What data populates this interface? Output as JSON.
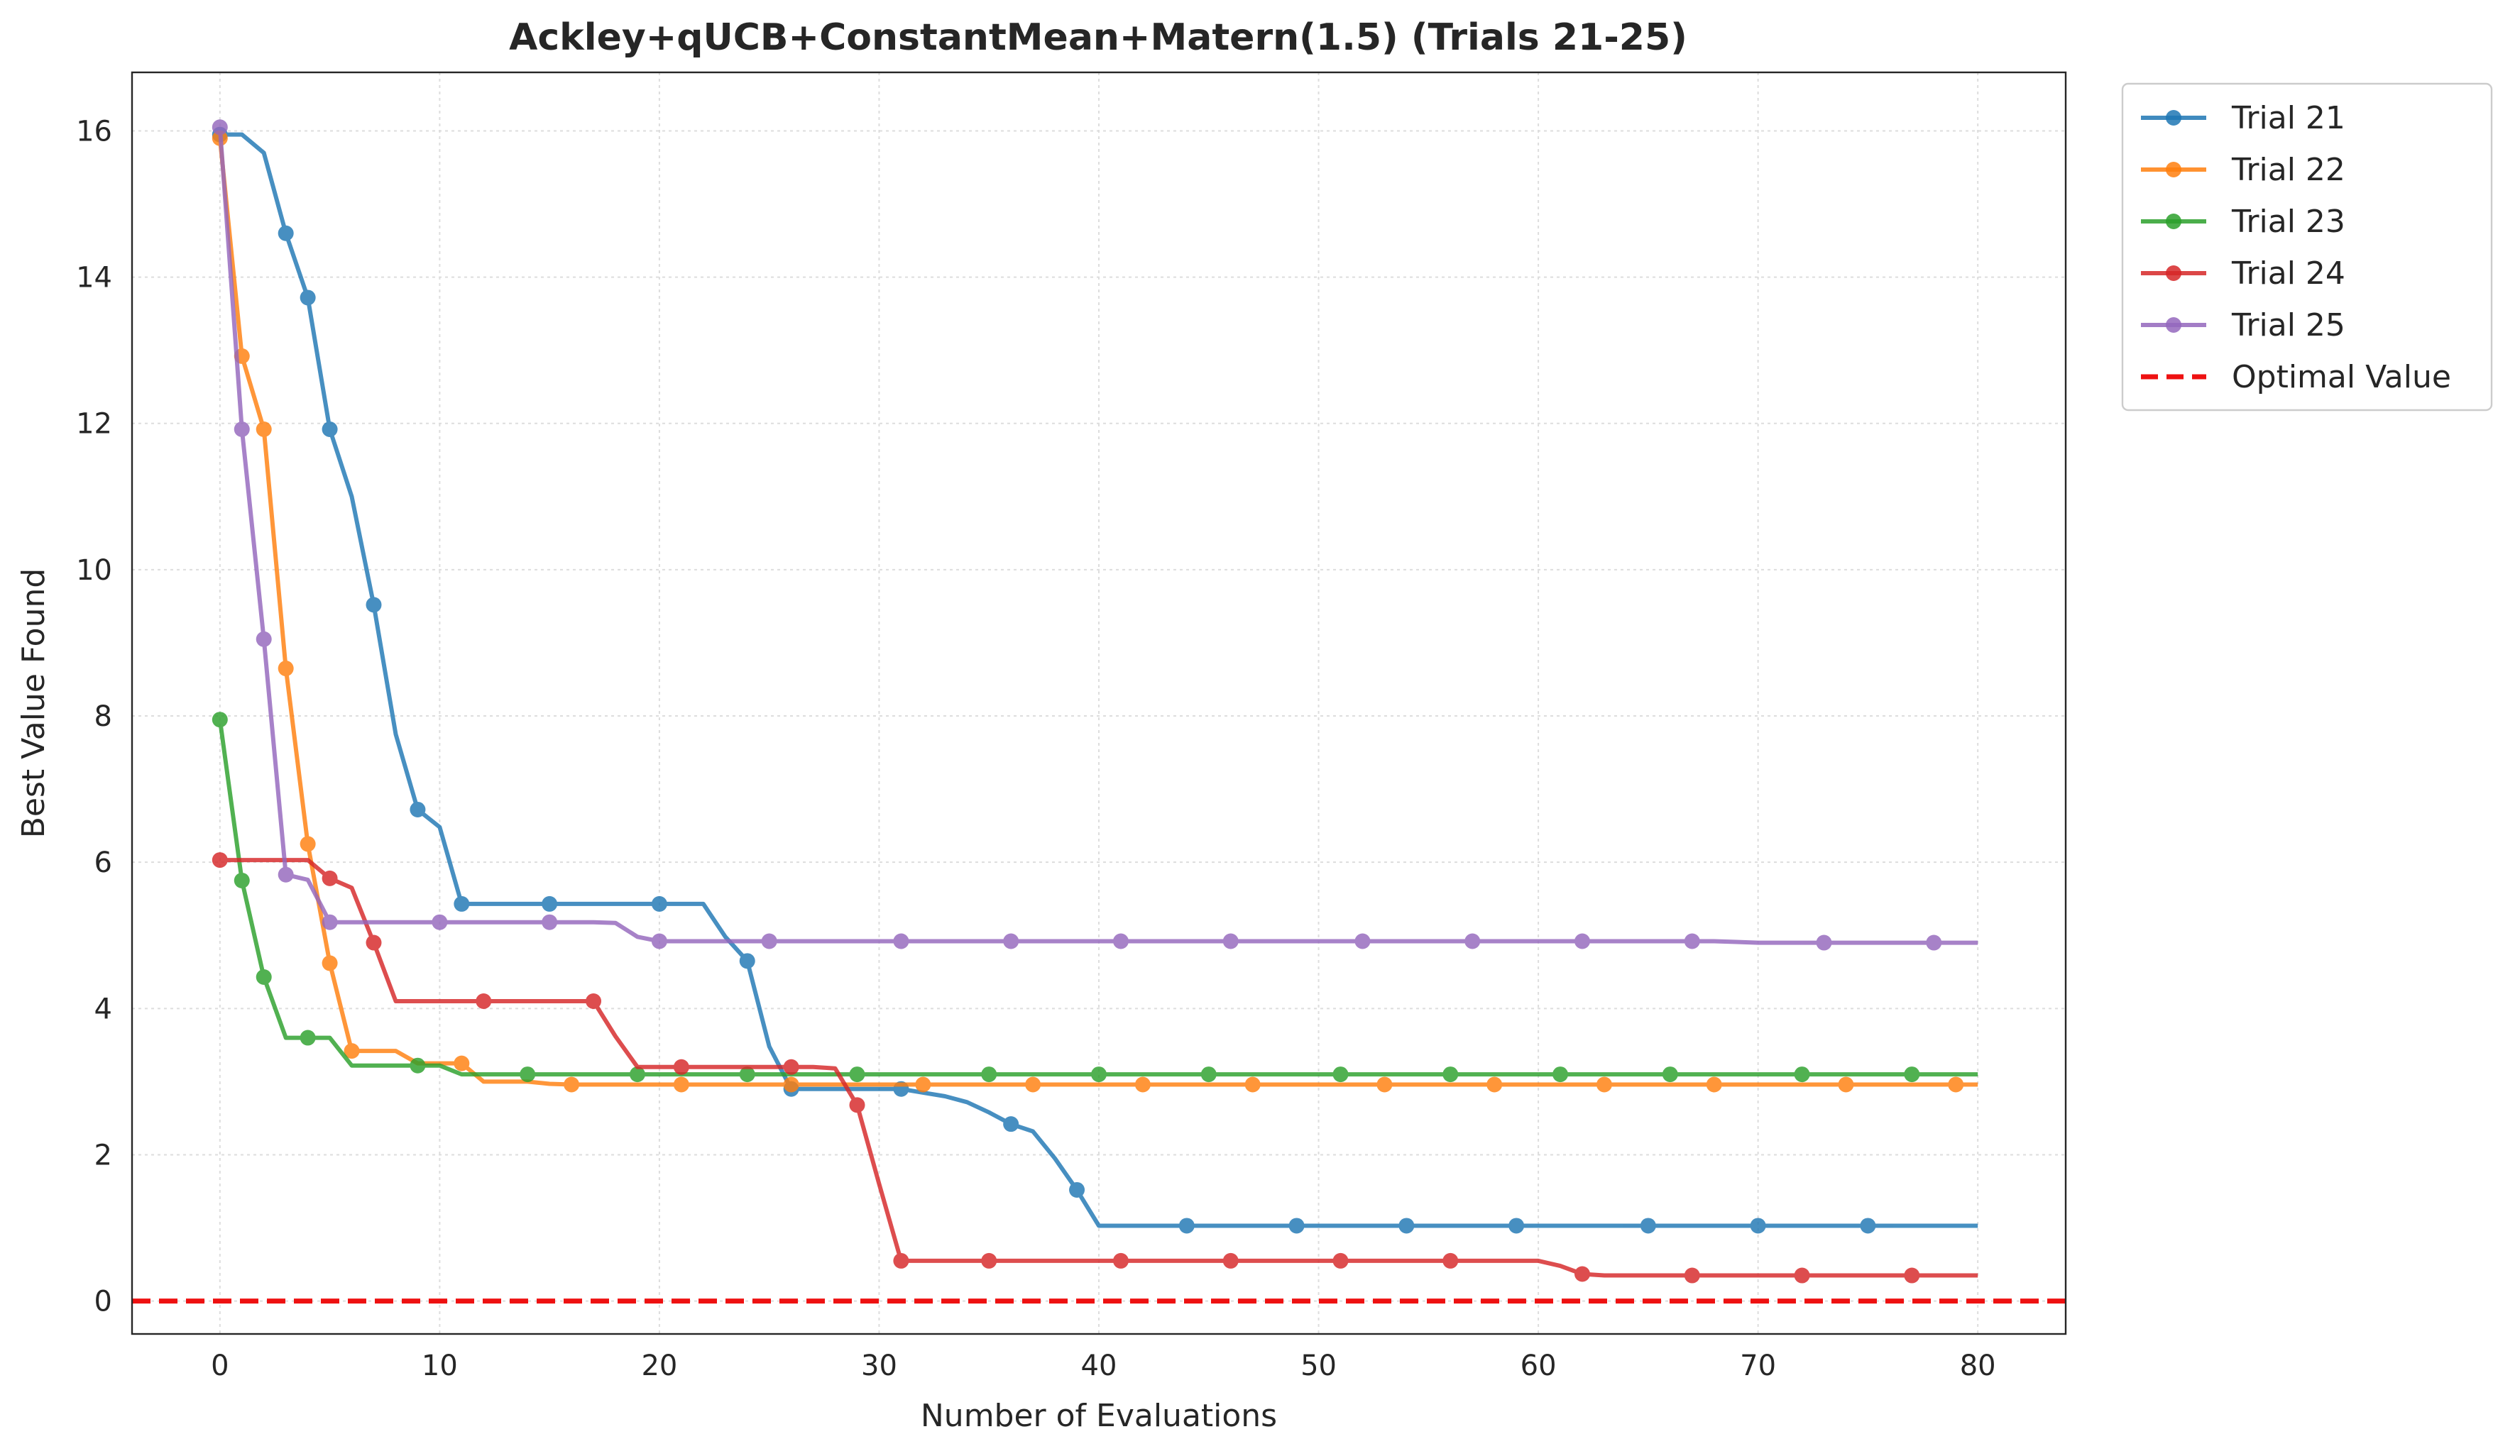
{
  "chart_data": {
    "type": "line",
    "title": "Ackley+qUCB+ConstantMean+Matern(1.5) (Trials 21-25)",
    "xlabel": "Number of Evaluations",
    "ylabel": "Best Value Found",
    "xlim": [
      -4,
      84
    ],
    "ylim": [
      -0.45,
      16.8
    ],
    "xticks": [
      0,
      10,
      20,
      30,
      40,
      50,
      60,
      70,
      80
    ],
    "yticks": [
      0,
      2,
      4,
      6,
      8,
      10,
      12,
      14,
      16
    ],
    "grid": true,
    "legend_position": "outside-top-right",
    "series": [
      {
        "name": "Trial 21",
        "color": "#1f77b4",
        "x": [
          0,
          1,
          2,
          3,
          4,
          5,
          6,
          7,
          8,
          9,
          10,
          11,
          12,
          13,
          14,
          15,
          16,
          17,
          18,
          19,
          20,
          21,
          22,
          23,
          24,
          25,
          26,
          27,
          28,
          29,
          30,
          31,
          32,
          33,
          34,
          35,
          36,
          37,
          38,
          39,
          40,
          41,
          42,
          43,
          44,
          45,
          46,
          47,
          48,
          49,
          50,
          51,
          52,
          53,
          54,
          55,
          56,
          57,
          58,
          59,
          60,
          61,
          62,
          63,
          64,
          65,
          66,
          67,
          68,
          69,
          70,
          71,
          72,
          73,
          74,
          75,
          76,
          77,
          78,
          79,
          80
        ],
        "y": [
          15.95,
          15.95,
          15.7,
          14.6,
          13.72,
          11.92,
          11.0,
          9.52,
          7.75,
          6.72,
          6.48,
          5.43,
          5.43,
          5.43,
          5.43,
          5.43,
          5.43,
          5.43,
          5.43,
          5.43,
          5.43,
          5.43,
          5.43,
          4.98,
          4.65,
          3.48,
          2.9,
          2.9,
          2.9,
          2.9,
          2.9,
          2.9,
          2.85,
          2.8,
          2.72,
          2.58,
          2.42,
          2.32,
          1.95,
          1.52,
          1.03,
          1.03,
          1.03,
          1.03,
          1.03,
          1.03,
          1.03,
          1.03,
          1.03,
          1.03,
          1.03,
          1.03,
          1.03,
          1.03,
          1.03,
          1.03,
          1.03,
          1.03,
          1.03,
          1.03,
          1.03,
          1.03,
          1.03,
          1.03,
          1.03,
          1.03,
          1.03,
          1.03,
          1.03,
          1.03,
          1.03,
          1.03,
          1.03,
          1.03,
          1.03,
          1.03,
          1.03,
          1.03,
          1.03,
          1.03,
          1.03
        ],
        "markers": [
          0,
          3,
          4,
          5,
          7,
          9,
          11,
          15,
          20,
          24,
          26,
          31,
          36,
          39,
          44,
          49,
          54,
          59,
          65,
          70,
          75
        ]
      },
      {
        "name": "Trial 22",
        "color": "#ff7f0e",
        "x": [
          0,
          1,
          2,
          3,
          4,
          5,
          6,
          7,
          8,
          9,
          10,
          11,
          12,
          13,
          14,
          15,
          16,
          17,
          18,
          19,
          20,
          21,
          22,
          23,
          24,
          25,
          26,
          27,
          28,
          29,
          30,
          31,
          32,
          33,
          34,
          35,
          36,
          37,
          38,
          39,
          40,
          41,
          42,
          43,
          44,
          45,
          46,
          47,
          48,
          49,
          50,
          51,
          52,
          53,
          54,
          55,
          56,
          57,
          58,
          59,
          60,
          61,
          62,
          63,
          64,
          65,
          66,
          67,
          68,
          69,
          70,
          71,
          72,
          73,
          74,
          75,
          76,
          77,
          78,
          79,
          80
        ],
        "y": [
          15.9,
          12.92,
          11.92,
          8.65,
          6.25,
          4.62,
          3.42,
          3.42,
          3.42,
          3.25,
          3.25,
          3.25,
          3.0,
          3.0,
          3.0,
          2.97,
          2.96,
          2.96,
          2.96,
          2.96,
          2.96,
          2.96,
          2.96,
          2.96,
          2.96,
          2.96,
          2.96,
          2.96,
          2.96,
          2.96,
          2.96,
          2.96,
          2.96,
          2.96,
          2.96,
          2.96,
          2.96,
          2.96,
          2.96,
          2.96,
          2.96,
          2.96,
          2.96,
          2.96,
          2.96,
          2.96,
          2.96,
          2.96,
          2.96,
          2.96,
          2.96,
          2.96,
          2.96,
          2.96,
          2.96,
          2.96,
          2.96,
          2.96,
          2.96,
          2.96,
          2.96,
          2.96,
          2.96,
          2.96,
          2.96,
          2.96,
          2.96,
          2.96,
          2.96,
          2.96,
          2.96,
          2.96,
          2.96,
          2.96,
          2.96,
          2.96,
          2.96,
          2.96,
          2.96,
          2.96,
          2.96
        ],
        "markers": [
          0,
          1,
          2,
          3,
          4,
          5,
          6,
          11,
          16,
          21,
          26,
          32,
          37,
          42,
          47,
          53,
          58,
          63,
          68,
          74,
          79
        ]
      },
      {
        "name": "Trial 23",
        "color": "#2ca02c",
        "x": [
          0,
          1,
          2,
          3,
          4,
          5,
          6,
          7,
          8,
          9,
          10,
          11,
          12,
          13,
          14,
          15,
          16,
          17,
          18,
          19,
          20,
          21,
          22,
          23,
          24,
          25,
          26,
          27,
          28,
          29,
          30,
          31,
          32,
          33,
          34,
          35,
          36,
          37,
          38,
          39,
          40,
          41,
          42,
          43,
          44,
          45,
          46,
          47,
          48,
          49,
          50,
          51,
          52,
          53,
          54,
          55,
          56,
          57,
          58,
          59,
          60,
          61,
          62,
          63,
          64,
          65,
          66,
          67,
          68,
          69,
          70,
          71,
          72,
          73,
          74,
          75,
          76,
          77,
          78,
          79,
          80
        ],
        "y": [
          7.95,
          5.75,
          4.43,
          3.6,
          3.6,
          3.6,
          3.22,
          3.22,
          3.22,
          3.22,
          3.22,
          3.1,
          3.1,
          3.1,
          3.1,
          3.1,
          3.1,
          3.1,
          3.1,
          3.1,
          3.1,
          3.1,
          3.1,
          3.1,
          3.1,
          3.1,
          3.1,
          3.1,
          3.1,
          3.1,
          3.1,
          3.1,
          3.1,
          3.1,
          3.1,
          3.1,
          3.1,
          3.1,
          3.1,
          3.1,
          3.1,
          3.1,
          3.1,
          3.1,
          3.1,
          3.1,
          3.1,
          3.1,
          3.1,
          3.1,
          3.1,
          3.1,
          3.1,
          3.1,
          3.1,
          3.1,
          3.1,
          3.1,
          3.1,
          3.1,
          3.1,
          3.1,
          3.1,
          3.1,
          3.1,
          3.1,
          3.1,
          3.1,
          3.1,
          3.1,
          3.1,
          3.1,
          3.1,
          3.1,
          3.1,
          3.1,
          3.1,
          3.1,
          3.1,
          3.1,
          3.1
        ],
        "markers": [
          0,
          1,
          2,
          4,
          9,
          14,
          19,
          24,
          29,
          35,
          40,
          45,
          51,
          56,
          61,
          66,
          72,
          77
        ]
      },
      {
        "name": "Trial 24",
        "color": "#d62728",
        "x": [
          0,
          1,
          2,
          3,
          4,
          5,
          6,
          7,
          8,
          9,
          10,
          11,
          12,
          13,
          14,
          15,
          16,
          17,
          18,
          19,
          20,
          21,
          22,
          23,
          24,
          25,
          26,
          27,
          28,
          29,
          30,
          31,
          32,
          33,
          34,
          35,
          36,
          37,
          38,
          39,
          40,
          41,
          42,
          43,
          44,
          45,
          46,
          47,
          48,
          49,
          50,
          51,
          52,
          53,
          54,
          55,
          56,
          57,
          58,
          59,
          60,
          61,
          62,
          63,
          64,
          65,
          66,
          67,
          68,
          69,
          70,
          71,
          72,
          73,
          74,
          75,
          76,
          77,
          78,
          79,
          80
        ],
        "y": [
          6.03,
          6.03,
          6.03,
          6.03,
          6.03,
          5.78,
          5.65,
          4.9,
          4.1,
          4.1,
          4.1,
          4.1,
          4.1,
          4.1,
          4.1,
          4.1,
          4.1,
          4.1,
          3.62,
          3.2,
          3.2,
          3.2,
          3.2,
          3.2,
          3.2,
          3.2,
          3.2,
          3.2,
          3.18,
          2.68,
          1.6,
          0.55,
          0.55,
          0.55,
          0.55,
          0.55,
          0.55,
          0.55,
          0.55,
          0.55,
          0.55,
          0.55,
          0.55,
          0.55,
          0.55,
          0.55,
          0.55,
          0.55,
          0.55,
          0.55,
          0.55,
          0.55,
          0.55,
          0.55,
          0.55,
          0.55,
          0.55,
          0.55,
          0.55,
          0.55,
          0.55,
          0.48,
          0.37,
          0.35,
          0.35,
          0.35,
          0.35,
          0.35,
          0.35,
          0.35,
          0.35,
          0.35,
          0.35,
          0.35,
          0.35,
          0.35,
          0.35,
          0.35,
          0.35,
          0.35,
          0.35
        ],
        "markers": [
          0,
          5,
          7,
          12,
          17,
          21,
          26,
          29,
          31,
          35,
          41,
          46,
          51,
          56,
          62,
          67,
          72,
          77
        ]
      },
      {
        "name": "Trial 25",
        "color": "#9467bd",
        "x": [
          0,
          1,
          2,
          3,
          4,
          5,
          6,
          7,
          8,
          9,
          10,
          11,
          12,
          13,
          14,
          15,
          16,
          17,
          18,
          19,
          20,
          21,
          22,
          23,
          24,
          25,
          26,
          27,
          28,
          29,
          30,
          31,
          32,
          33,
          34,
          35,
          36,
          37,
          38,
          39,
          40,
          41,
          42,
          43,
          44,
          45,
          46,
          47,
          48,
          49,
          50,
          51,
          52,
          53,
          54,
          55,
          56,
          57,
          58,
          59,
          60,
          61,
          62,
          63,
          64,
          65,
          66,
          67,
          68,
          69,
          70,
          71,
          72,
          73,
          74,
          75,
          76,
          77,
          78,
          79,
          80
        ],
        "y": [
          16.05,
          11.92,
          9.05,
          5.83,
          5.76,
          5.18,
          5.18,
          5.18,
          5.18,
          5.18,
          5.18,
          5.18,
          5.18,
          5.18,
          5.18,
          5.18,
          5.18,
          5.18,
          5.17,
          4.98,
          4.92,
          4.92,
          4.92,
          4.92,
          4.92,
          4.92,
          4.92,
          4.92,
          4.92,
          4.92,
          4.92,
          4.92,
          4.92,
          4.92,
          4.92,
          4.92,
          4.92,
          4.92,
          4.92,
          4.92,
          4.92,
          4.92,
          4.92,
          4.92,
          4.92,
          4.92,
          4.92,
          4.92,
          4.92,
          4.92,
          4.92,
          4.92,
          4.92,
          4.92,
          4.92,
          4.92,
          4.92,
          4.92,
          4.92,
          4.92,
          4.92,
          4.92,
          4.92,
          4.92,
          4.92,
          4.92,
          4.92,
          4.92,
          4.92,
          4.91,
          4.9,
          4.9,
          4.9,
          4.9,
          4.9,
          4.9,
          4.9,
          4.9,
          4.9,
          4.9,
          4.9
        ],
        "markers": [
          0,
          1,
          2,
          3,
          5,
          10,
          15,
          20,
          25,
          31,
          36,
          41,
          46,
          52,
          57,
          62,
          67,
          73,
          78
        ]
      }
    ],
    "reference_line": {
      "name": "Optimal Value",
      "y": 0,
      "color": "#ee1111",
      "style": "dashed"
    }
  }
}
